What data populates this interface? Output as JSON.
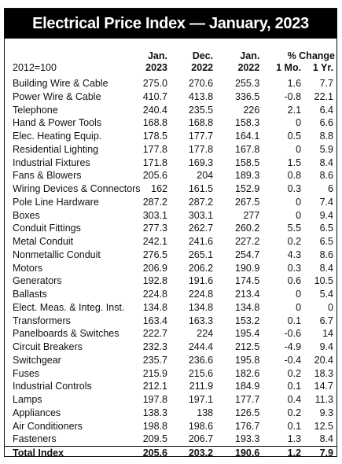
{
  "title": "Electrical Price Index — January, 2023",
  "header": {
    "base_label": "2012=100",
    "col1_top": "Jan.",
    "col1_bottom": "2023",
    "col2_top": "Dec.",
    "col2_bottom": "2022",
    "col3_top": "Jan.",
    "col3_bottom": "2022",
    "pct_change_label": "% Change",
    "pct_mo_label": "1 Mo.",
    "pct_yr_label": "1 Yr."
  },
  "rows": [
    {
      "name": "Building Wire & Cable",
      "jan2023": "275.0",
      "dec2022": "270.6",
      "jan2022": "255.3",
      "mo": "1.6",
      "yr": "7.7"
    },
    {
      "name": "Power Wire & Cable",
      "jan2023": "410.7",
      "dec2022": "413.8",
      "jan2022": "336.5",
      "mo": "-0.8",
      "yr": "22.1"
    },
    {
      "name": "Telephone",
      "jan2023": "240.4",
      "dec2022": "235.5",
      "jan2022": "226",
      "mo": "2.1",
      "yr": "6.4"
    },
    {
      "name": "Hand & Power Tools",
      "jan2023": "168.8",
      "dec2022": "168.8",
      "jan2022": "158.3",
      "mo": "0",
      "yr": "6.6"
    },
    {
      "name": "Elec. Heating Equip.",
      "jan2023": "178.5",
      "dec2022": "177.7",
      "jan2022": "164.1",
      "mo": "0.5",
      "yr": "8.8"
    },
    {
      "name": "Residential Lighting",
      "jan2023": "177.8",
      "dec2022": "177.8",
      "jan2022": "167.8",
      "mo": "0",
      "yr": "5.9"
    },
    {
      "name": "Industrial Fixtures",
      "jan2023": "171.8",
      "dec2022": "169.3",
      "jan2022": "158.5",
      "mo": "1.5",
      "yr": "8.4"
    },
    {
      "name": "Fans & Blowers",
      "jan2023": "205.6",
      "dec2022": "204",
      "jan2022": "189.3",
      "mo": "0.8",
      "yr": "8.6"
    },
    {
      "name": "Wiring Devices & Connectors",
      "jan2023": "162",
      "dec2022": "161.5",
      "jan2022": "152.9",
      "mo": "0.3",
      "yr": "6"
    },
    {
      "name": "Pole Line Hardware",
      "jan2023": "287.2",
      "dec2022": "287.2",
      "jan2022": "267.5",
      "mo": "0",
      "yr": "7.4"
    },
    {
      "name": "Boxes",
      "jan2023": "303.1",
      "dec2022": "303.1",
      "jan2022": "277",
      "mo": "0",
      "yr": "9.4"
    },
    {
      "name": "Conduit Fittings",
      "jan2023": "277.3",
      "dec2022": "262.7",
      "jan2022": "260.2",
      "mo": "5.5",
      "yr": "6.5"
    },
    {
      "name": "Metal Conduit",
      "jan2023": "242.1",
      "dec2022": "241.6",
      "jan2022": "227.2",
      "mo": "0.2",
      "yr": "6.5"
    },
    {
      "name": "Nonmetallic Conduit",
      "jan2023": "276.5",
      "dec2022": "265.1",
      "jan2022": "254.7",
      "mo": "4.3",
      "yr": "8.6"
    },
    {
      "name": "Motors",
      "jan2023": "206.9",
      "dec2022": "206.2",
      "jan2022": "190.9",
      "mo": "0.3",
      "yr": "8.4"
    },
    {
      "name": "Generators",
      "jan2023": "192.8",
      "dec2022": "191.6",
      "jan2022": "174.5",
      "mo": "0.6",
      "yr": "10.5"
    },
    {
      "name": "Ballasts",
      "jan2023": "224.8",
      "dec2022": "224.8",
      "jan2022": "213.4",
      "mo": "0",
      "yr": "5.4"
    },
    {
      "name": "Elect. Meas. & Integ. Inst.",
      "jan2023": "134.8",
      "dec2022": "134.8",
      "jan2022": "134.8",
      "mo": "0",
      "yr": "0"
    },
    {
      "name": "Transformers",
      "jan2023": "163.4",
      "dec2022": "163.3",
      "jan2022": "153.2",
      "mo": "0.1",
      "yr": "6.7"
    },
    {
      "name": "Panelboards & Switches",
      "jan2023": "222.7",
      "dec2022": "224",
      "jan2022": "195.4",
      "mo": "-0.6",
      "yr": "14"
    },
    {
      "name": "Circuit Breakers",
      "jan2023": "232.3",
      "dec2022": "244.4",
      "jan2022": "212.5",
      "mo": "-4.9",
      "yr": "9.4"
    },
    {
      "name": "Switchgear",
      "jan2023": "235.7",
      "dec2022": "236.6",
      "jan2022": "195.8",
      "mo": "-0.4",
      "yr": "20.4"
    },
    {
      "name": "Fuses",
      "jan2023": "215.9",
      "dec2022": "215.6",
      "jan2022": "182.6",
      "mo": "0.2",
      "yr": "18.3"
    },
    {
      "name": "Industrial Controls",
      "jan2023": "212.1",
      "dec2022": "211.9",
      "jan2022": "184.9",
      "mo": "0.1",
      "yr": "14.7"
    },
    {
      "name": "Lamps",
      "jan2023": "197.8",
      "dec2022": "197.1",
      "jan2022": "177.7",
      "mo": "0.4",
      "yr": "11.3"
    },
    {
      "name": "Appliances",
      "jan2023": "138.3",
      "dec2022": "138",
      "jan2022": "126.5",
      "mo": "0.2",
      "yr": "9.3"
    },
    {
      "name": "Air Conditioners",
      "jan2023": "198.8",
      "dec2022": "198.6",
      "jan2022": "176.7",
      "mo": "0.1",
      "yr": "12.5"
    },
    {
      "name": "Fasteners",
      "jan2023": "209.5",
      "dec2022": "206.7",
      "jan2022": "193.3",
      "mo": "1.3",
      "yr": "8.4"
    }
  ],
  "total": {
    "name": "Total Index",
    "jan2023": "205.6",
    "dec2022": "203.2",
    "jan2022": "190.6",
    "mo": "1.2",
    "yr": "7.9"
  }
}
